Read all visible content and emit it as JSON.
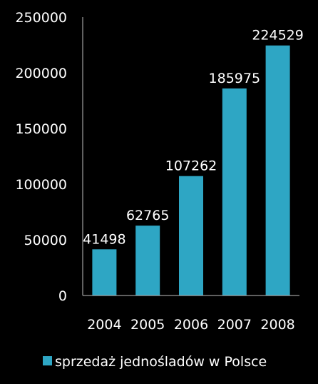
{
  "chart_data": {
    "type": "bar",
    "categories": [
      "2004",
      "2005",
      "2006",
      "2007",
      "2008"
    ],
    "series": [
      {
        "name": "sprzedaż jednośladów w Polsce",
        "values": [
          41498,
          62765,
          107262,
          185975,
          224529
        ]
      }
    ],
    "ylim": [
      0,
      250000
    ],
    "yticks": [
      0,
      50000,
      100000,
      150000,
      200000,
      250000
    ],
    "grid": false,
    "legend_position": "bottom",
    "data_labels": true
  },
  "colors": {
    "background": "#000000",
    "bar": "#2ea6c4",
    "text": "#ffffff",
    "axis": "#bfbfbf"
  }
}
